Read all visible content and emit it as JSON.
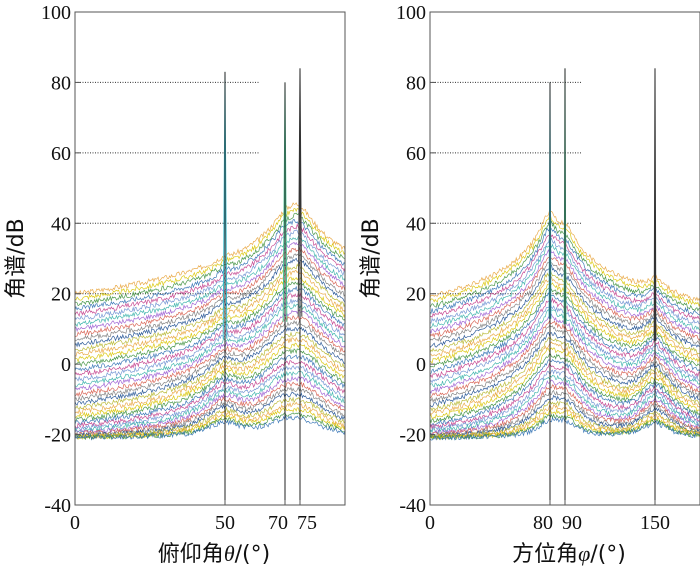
{
  "chart_data": [
    {
      "type": "line",
      "xlabel_parts": [
        "俯仰角",
        "θ",
        "/(°)"
      ],
      "ylabel": "角谱/dB",
      "xlim": [
        0,
        90
      ],
      "ylim": [
        -40,
        100
      ],
      "x_ticks": [
        {
          "value": 0,
          "label": "0"
        },
        {
          "value": 50,
          "label": "50"
        },
        {
          "value": 70,
          "label": "70"
        },
        {
          "value": 75,
          "label": "75"
        }
      ],
      "y_ticks": [
        {
          "value": 100,
          "label": "100"
        },
        {
          "value": 80,
          "label": "80"
        },
        {
          "value": 60,
          "label": "60"
        },
        {
          "value": 40,
          "label": "40"
        },
        {
          "value": 20,
          "label": "20"
        },
        {
          "value": 0,
          "label": "0"
        },
        {
          "value": -20,
          "label": "-20"
        },
        {
          "value": -40,
          "label": "-40"
        }
      ],
      "grid": "dashed horizontal lines at 20, 40, 60, 80",
      "peak_markers_x": [
        50,
        70,
        75
      ],
      "series_count": 40,
      "floor_db": -21,
      "peaks": [
        {
          "x": 50,
          "max_db": 24,
          "envelope_db": 24,
          "spike_db": 83
        },
        {
          "x": 70,
          "max_db": 40,
          "envelope_db": 40,
          "spike_db": 80
        },
        {
          "x": 75,
          "max_db": 45,
          "envelope_db": 45,
          "spike_db": 84
        }
      ]
    },
    {
      "type": "line",
      "xlabel_parts": [
        "方位角",
        "φ",
        "/(°)"
      ],
      "ylabel": "角谱/dB",
      "xlim": [
        0,
        180
      ],
      "ylim": [
        -40,
        100
      ],
      "x_ticks": [
        {
          "value": 0,
          "label": "0"
        },
        {
          "value": 80,
          "label": "80"
        },
        {
          "value": 90,
          "label": "90"
        },
        {
          "value": 150,
          "label": "150"
        }
      ],
      "y_ticks": [
        {
          "value": 100,
          "label": "100"
        },
        {
          "value": 80,
          "label": "80"
        },
        {
          "value": 60,
          "label": "60"
        },
        {
          "value": 40,
          "label": "40"
        },
        {
          "value": 20,
          "label": "20"
        },
        {
          "value": 0,
          "label": "0"
        },
        {
          "value": -20,
          "label": "-20"
        },
        {
          "value": -40,
          "label": "-40"
        }
      ],
      "grid": "dashed horizontal lines at 20, 40, 60, 80",
      "peak_markers_x": [
        80,
        90,
        150
      ],
      "series_count": 40,
      "floor_db": -21,
      "peaks": [
        {
          "x": 80,
          "max_db": 43,
          "envelope_db": 43,
          "spike_db": 80
        },
        {
          "x": 90,
          "max_db": 38,
          "envelope_db": 38,
          "spike_db": 84
        },
        {
          "x": 150,
          "max_db": 22,
          "envelope_db": 22,
          "spike_db": 84
        }
      ]
    }
  ],
  "colors": {
    "axis": "#555555",
    "grid": "#333333",
    "text": "#111111",
    "series_palette": [
      "#e8a33a",
      "#d8c400",
      "#3b8f3b",
      "#2f6fb3",
      "#c23b8a",
      "#6a8fd0",
      "#35b0a8",
      "#9a5bd1",
      "#d65b4a",
      "#7a7a7a",
      "#1d4f91",
      "#b5b52a"
    ],
    "spike_colors": [
      "#37b8c9",
      "#46c08f",
      "#444444"
    ]
  }
}
